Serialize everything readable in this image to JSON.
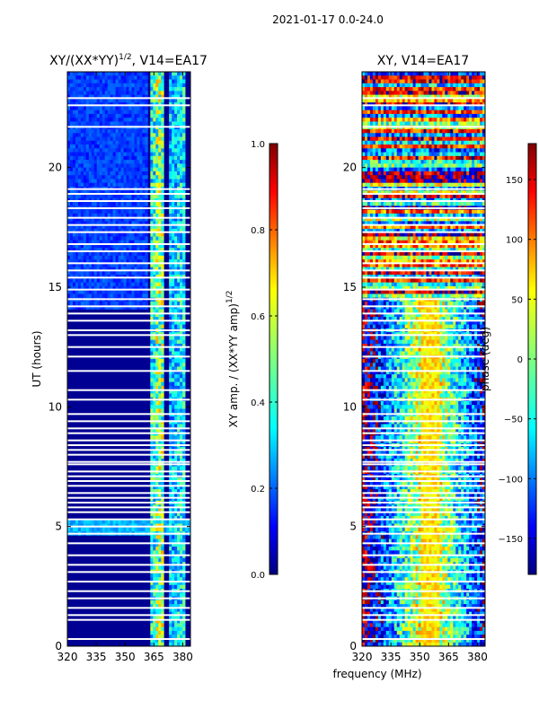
{
  "figure": {
    "suptitle": "2021-01-17 0.0-24.0",
    "shared_xlabel": "frequency (MHz)"
  },
  "chart_data": [
    {
      "type": "heatmap",
      "title": "XY/(XX*YY)^1/2, V14=EA17",
      "title_main": "XY/(XX*YY)",
      "title_exp": "1/2",
      "title_rest": ", V14=EA17",
      "xlabel": "frequency (MHz)",
      "ylabel": "UT (hours)",
      "xlim": [
        320,
        384
      ],
      "ylim": [
        0,
        24
      ],
      "xticks": [
        320,
        335,
        350,
        365,
        380
      ],
      "yticks": [
        0,
        5,
        10,
        15,
        20
      ],
      "colormap": "jet",
      "colorbar": {
        "label": "XY amp. / (XX*YY amp)^1/2",
        "label_main": "XY amp. / (XX*YY amp)",
        "label_exp": "1/2",
        "range": [
          0.0,
          1.0
        ],
        "ticks": [
          "0.0",
          "0.2",
          "0.4",
          "0.6",
          "0.8",
          "1.0"
        ]
      },
      "gap_hours": [
        0.3,
        1.1,
        1.3,
        1.6,
        2.0,
        2.3,
        2.7,
        3.1,
        3.4,
        3.8,
        4.3,
        4.7,
        5.0,
        5.3,
        5.6,
        5.8,
        6.0,
        6.2,
        6.4,
        6.7,
        6.9,
        7.1,
        7.3,
        7.6,
        7.7,
        8.0,
        8.2,
        8.4,
        8.6,
        8.9,
        9.1,
        9.4,
        9.7,
        10.3,
        10.7,
        11.5,
        12.1,
        12.5,
        13.0,
        13.2,
        13.6,
        13.9,
        14.2,
        14.5,
        14.9,
        15.4,
        15.7,
        16.0,
        16.5,
        16.8,
        17.3,
        17.6,
        17.9,
        18.3,
        18.6,
        18.9,
        19.1,
        21.7,
        22.6,
        22.9
      ],
      "features": [
        {
          "freq": 365,
          "level": 0.45
        },
        {
          "freq": 368,
          "level": 0.55
        },
        {
          "freq": 375,
          "level": 0.35
        },
        {
          "freq": 379,
          "level": 0.4
        }
      ]
    },
    {
      "type": "heatmap",
      "title": "XY, V14=EA17",
      "xlabel": "frequency (MHz)",
      "ylabel": "",
      "xlim": [
        320,
        384
      ],
      "ylim": [
        0,
        24
      ],
      "xticks": [
        320,
        335,
        350,
        365,
        380
      ],
      "yticks": [
        0,
        5,
        10,
        15,
        20
      ],
      "colormap": "jet",
      "colorbar": {
        "label": "phase (deg)",
        "range": [
          -180,
          180
        ],
        "ticks": [
          "150",
          "100",
          "50",
          "0",
          "−50",
          "−100",
          "−150"
        ],
        "tick_values": [
          150,
          100,
          50,
          0,
          -50,
          -100,
          -150
        ]
      },
      "central_band_MHz": [
        350,
        360
      ]
    }
  ],
  "colors": {
    "jet": [
      "#00007f",
      "#0000ff",
      "#007fff",
      "#00ffff",
      "#7fff7f",
      "#ffff00",
      "#ff7f00",
      "#ff0000",
      "#7f0000"
    ],
    "axes": "#000000",
    "background": "#ffffff"
  }
}
